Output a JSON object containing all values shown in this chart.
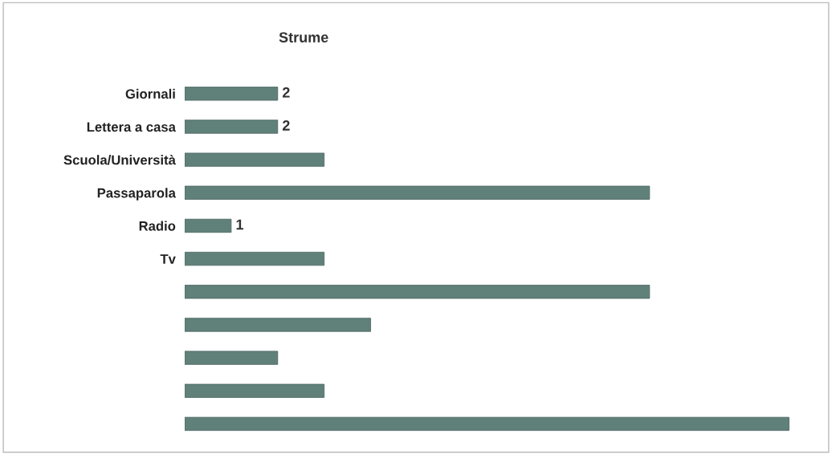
{
  "chart_data": {
    "type": "bar",
    "orientation": "horizontal",
    "title": "Strume",
    "categories": [
      "Giornali",
      "Lettera a casa",
      "Scuola/Università",
      "Passaparola",
      "Radio",
      "Tv",
      null,
      null,
      null,
      null,
      null
    ],
    "values": [
      2,
      2,
      3,
      10,
      1,
      3,
      10,
      4,
      2,
      3,
      13
    ],
    "value_labels": [
      "2",
      "2",
      null,
      null,
      "1",
      null,
      null,
      null,
      null,
      null,
      null
    ],
    "color": "#60807a",
    "grid": false,
    "legend": false
  }
}
